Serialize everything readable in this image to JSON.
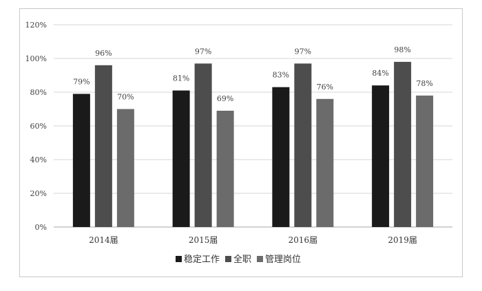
{
  "chart_data": {
    "type": "bar",
    "title": "",
    "xlabel": "",
    "ylabel": "",
    "categories": [
      "2014届",
      "2015届",
      "2016届",
      "2019届"
    ],
    "series": [
      {
        "name": "稳定工作",
        "color": "#1a1a1a",
        "values": [
          79,
          81,
          83,
          84
        ]
      },
      {
        "name": "全职",
        "color": "#4d4d4d",
        "values": [
          96,
          97,
          97,
          98
        ]
      },
      {
        "name": "管理岗位",
        "color": "#6b6b6b",
        "values": [
          70,
          69,
          76,
          78
        ]
      }
    ],
    "ylim": [
      0,
      120
    ],
    "yticks": [
      "0%",
      "20%",
      "40%",
      "60%",
      "80%",
      "100%",
      "120%"
    ],
    "value_suffix": "%",
    "grid": true,
    "legend_position": "bottom"
  }
}
